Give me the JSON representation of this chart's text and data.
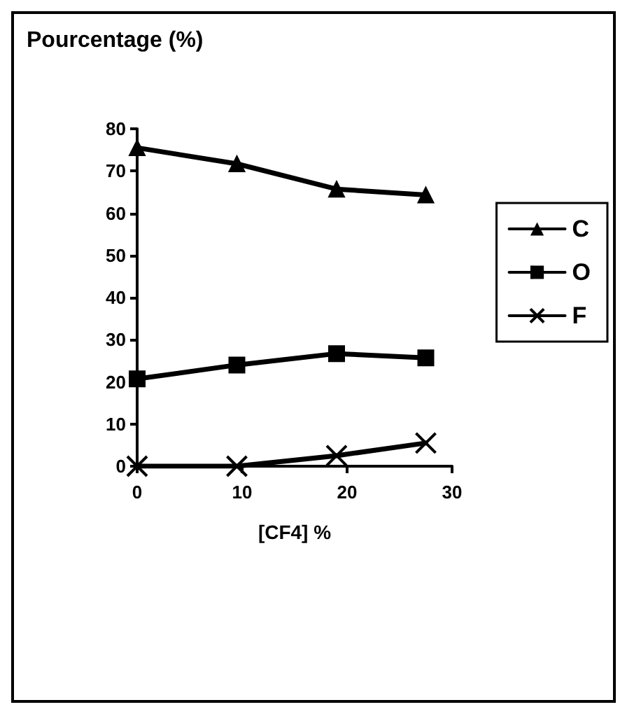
{
  "chart_data": {
    "type": "line",
    "ylabel": "Pourcentage (%)",
    "xlabel": "[CF4] %",
    "x": [
      0,
      9.5,
      19,
      27.5
    ],
    "series": [
      {
        "name": "C",
        "color": "#000000",
        "marker": "triangle",
        "values": [
          75.5,
          71.7,
          65.7,
          64.3
        ]
      },
      {
        "name": "O",
        "color": "#000000",
        "marker": "square",
        "values": [
          20.7,
          24,
          26.7,
          25.7
        ]
      },
      {
        "name": "F",
        "color": "#000000",
        "marker": "cross",
        "values": [
          0,
          0,
          2.5,
          5.5
        ]
      }
    ],
    "xlim": [
      0,
      30
    ],
    "xticks": [
      0,
      10,
      20,
      30
    ],
    "ylim": [
      0,
      80
    ],
    "yticks": [
      0,
      10,
      20,
      30,
      40,
      50,
      60,
      70,
      80
    ],
    "grid": false,
    "legend": "right",
    "line_style": "solid"
  }
}
